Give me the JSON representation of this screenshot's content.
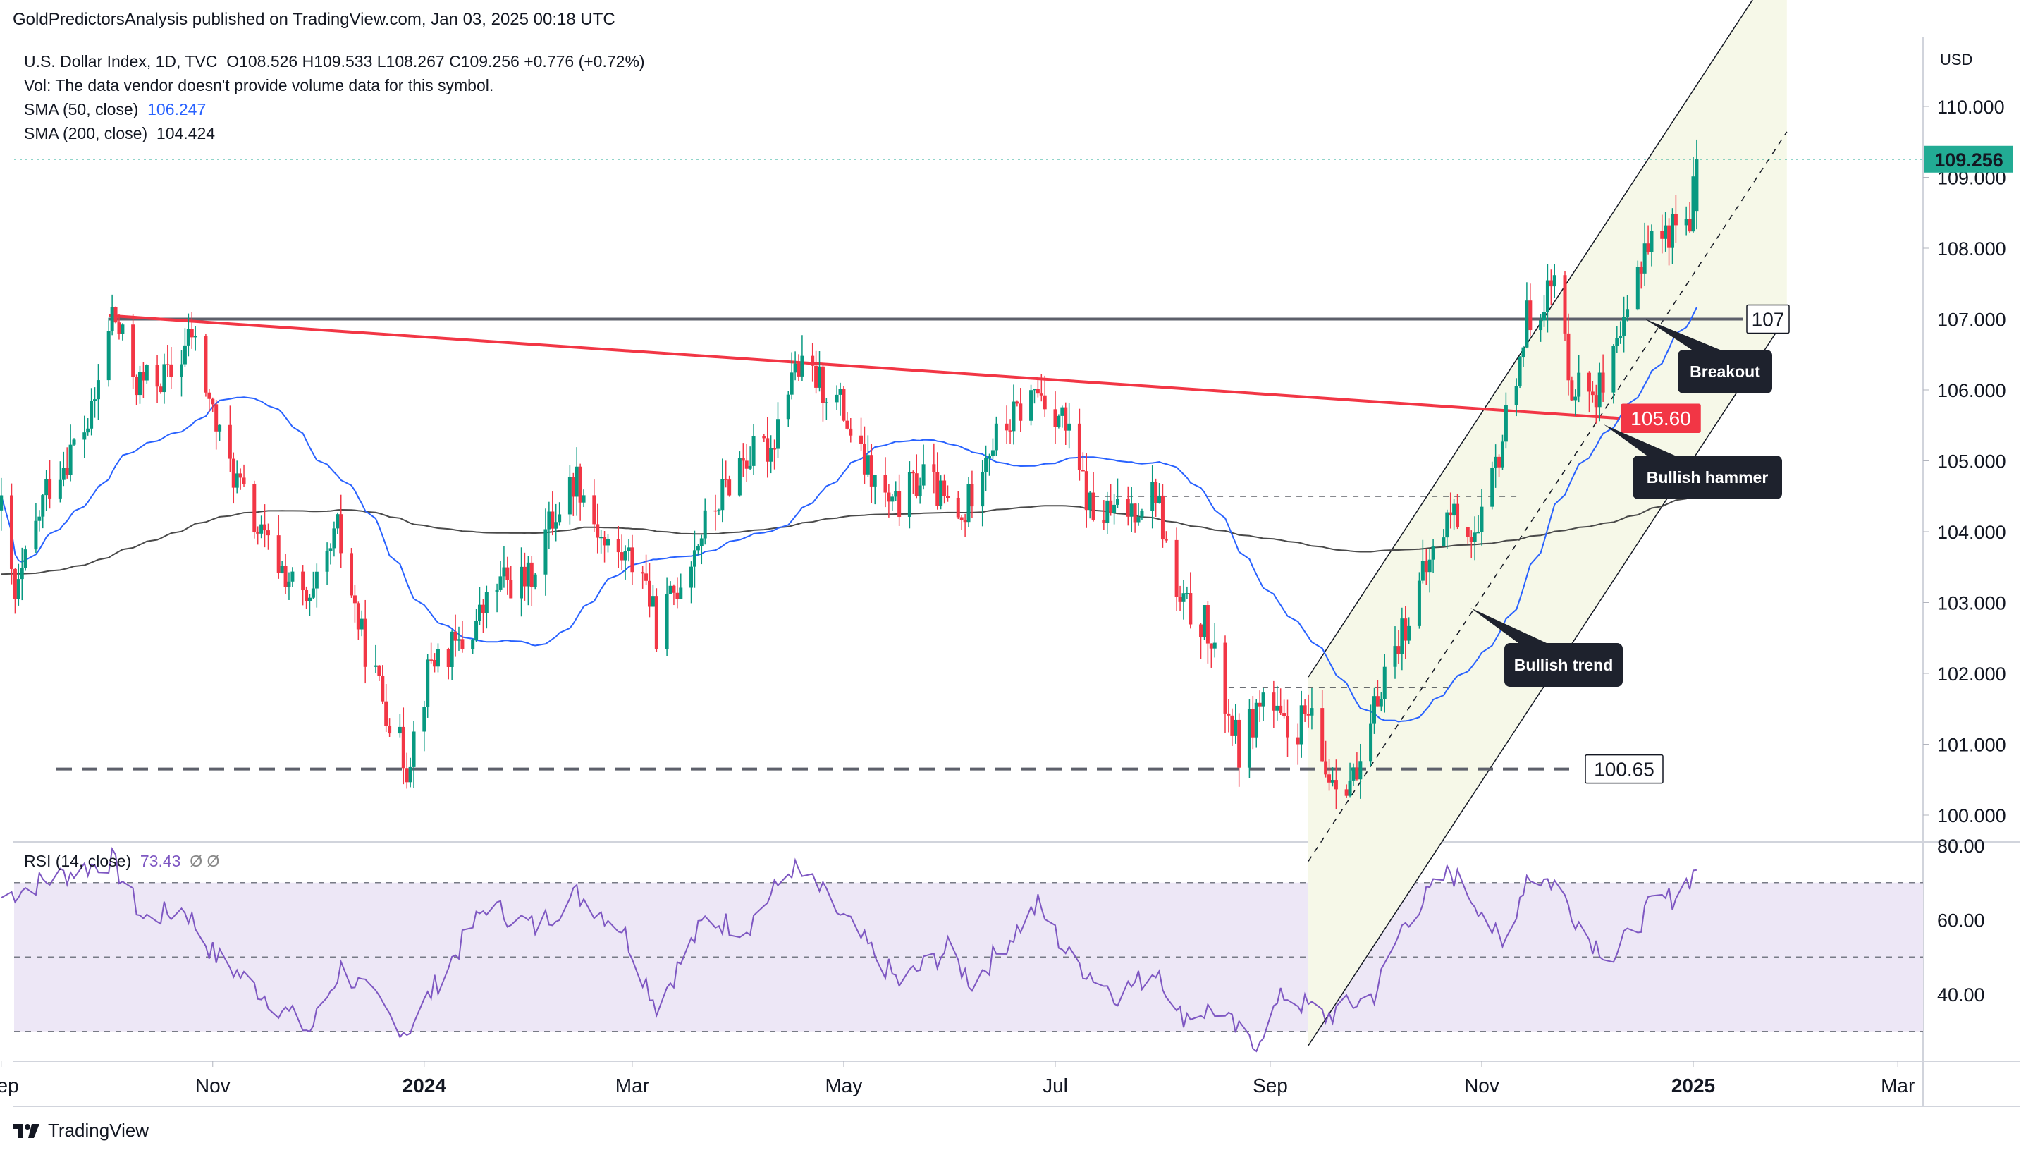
{
  "header": {
    "publisher": "GoldPredictorsAnalysis published on TradingView.com, Jan 03, 2025 00:18 UTC"
  },
  "legend": {
    "symbol_line": "U.S. Dollar Index, 1D, TVC",
    "ohlc": "O108.526  H109.533  L108.267  C109.256  +0.776 (+0.72%)",
    "vol_note": "Vol: The data vendor doesn't provide volume data for this symbol.",
    "sma50_label": "SMA (50, close)",
    "sma50_value": "106.247",
    "sma200_label": "SMA (200, close)",
    "sma200_value": "104.424"
  },
  "rsi_legend": {
    "label": "RSI (14, close)",
    "value": "73.43",
    "extra": "Ø  Ø"
  },
  "price_axis": {
    "currency": "USD",
    "ticks": [
      "110.000",
      "109.000",
      "108.000",
      "107.000",
      "106.000",
      "105.000",
      "104.000",
      "103.000",
      "102.000",
      "101.000",
      "100.000"
    ],
    "current_price": "109.256"
  },
  "rsi_axis": {
    "ticks": [
      "80.00",
      "60.00",
      "40.00"
    ]
  },
  "time_axis": {
    "ticks": [
      "Sep",
      "Nov",
      "2024",
      "Mar",
      "May",
      "Jul",
      "Sep",
      "Nov",
      "2025",
      "Mar"
    ]
  },
  "annotations": {
    "resistance_label": "107",
    "support_label": "100.65",
    "trendline_label": "105.60",
    "breakout": "Breakout",
    "bullish_hammer": "Bullish hammer",
    "bullish_trend": "Bullish trend"
  },
  "footer": {
    "brand": "TradingView"
  },
  "colors": {
    "up": "#089981",
    "down": "#f23645",
    "sma50": "#2962ff",
    "sma200": "#4a4a4a",
    "trendline": "#f23645",
    "channel_fill": "#f6f8e8",
    "rsi_line": "#7e57c2",
    "rsi_band": "#ede7f6",
    "current_price_bg": "#22ab94",
    "trendline_label_bg": "#f23645"
  },
  "chart_data": {
    "type": "candlestick",
    "title": "U.S. Dollar Index, 1D, TVC",
    "price_range": [
      99.6,
      110.9
    ],
    "rsi_range": [
      25,
      82
    ],
    "rsi_levels": [
      70,
      50,
      30
    ],
    "x_range": [
      "2023-08-31",
      "2025-03-25"
    ],
    "last_bar": {
      "date": "2025-01-02",
      "open": 108.526,
      "high": 109.533,
      "low": 108.267,
      "close": 109.256
    },
    "sma50_last": 106.247,
    "sma200_last": 104.424,
    "rsi_last": 73.43,
    "levels": {
      "resistance": 107,
      "support": 100.65,
      "trendline_value_at_last": 105.6
    },
    "price_path": [
      [
        "2023-09-01",
        104.3
      ],
      [
        "2023-09-05",
        103.0
      ],
      [
        "2023-09-14",
        104.6
      ],
      [
        "2023-09-27",
        105.6
      ],
      [
        "2023-10-03",
        107.1
      ],
      [
        "2023-10-10",
        106.1
      ],
      [
        "2023-10-20",
        106.2
      ],
      [
        "2023-10-26",
        106.8
      ],
      [
        "2023-11-03",
        105.3
      ],
      [
        "2023-11-14",
        104.0
      ],
      [
        "2023-11-22",
        103.4
      ],
      [
        "2023-11-29",
        102.9
      ],
      [
        "2023-12-07",
        104.0
      ],
      [
        "2023-12-14",
        102.5
      ],
      [
        "2023-12-27",
        100.7
      ],
      [
        "2024-01-03",
        102.2
      ],
      [
        "2024-01-12",
        102.4
      ],
      [
        "2024-01-23",
        103.3
      ],
      [
        "2024-01-31",
        103.3
      ],
      [
        "2024-02-06",
        104.1
      ],
      [
        "2024-02-14",
        104.8
      ],
      [
        "2024-02-22",
        103.8
      ],
      [
        "2024-03-04",
        103.5
      ],
      [
        "2024-03-08",
        102.6
      ],
      [
        "2024-03-20",
        103.9
      ],
      [
        "2024-04-01",
        105.0
      ],
      [
        "2024-04-10",
        105.2
      ],
      [
        "2024-04-16",
        106.3
      ],
      [
        "2024-04-22",
        106.2
      ],
      [
        "2024-04-30",
        105.8
      ],
      [
        "2024-05-06",
        105.0
      ],
      [
        "2024-05-15",
        104.3
      ],
      [
        "2024-05-24",
        104.8
      ],
      [
        "2024-06-04",
        104.1
      ],
      [
        "2024-06-10",
        105.1
      ],
      [
        "2024-06-26",
        106.0
      ],
      [
        "2024-07-03",
        105.6
      ],
      [
        "2024-07-12",
        104.2
      ],
      [
        "2024-07-22",
        104.3
      ],
      [
        "2024-07-30",
        104.6
      ],
      [
        "2024-08-05",
        103.0
      ],
      [
        "2024-08-13",
        102.7
      ],
      [
        "2024-08-23",
        100.9
      ],
      [
        "2024-08-30",
        101.7
      ],
      [
        "2024-09-06",
        101.1
      ],
      [
        "2024-09-12",
        101.4
      ],
      [
        "2024-09-17",
        100.6
      ],
      [
        "2024-09-27",
        100.5
      ],
      [
        "2024-10-03",
        101.9
      ],
      [
        "2024-10-14",
        103.2
      ],
      [
        "2024-10-23",
        104.3
      ],
      [
        "2024-10-31",
        103.9
      ],
      [
        "2024-11-06",
        105.1
      ],
      [
        "2024-11-14",
        107.0
      ],
      [
        "2024-11-22",
        107.5
      ],
      [
        "2024-11-27",
        106.1
      ],
      [
        "2024-12-06",
        106.0
      ],
      [
        "2024-12-11",
        106.6
      ],
      [
        "2024-12-18",
        108.1
      ],
      [
        "2024-12-24",
        108.2
      ],
      [
        "2024-12-31",
        108.5
      ],
      [
        "2025-01-02",
        109.26
      ]
    ],
    "rsi_path": [
      [
        "2023-09-01",
        66
      ],
      [
        "2023-09-12",
        70
      ],
      [
        "2023-09-25",
        74
      ],
      [
        "2023-10-03",
        76
      ],
      [
        "2023-10-12",
        60
      ],
      [
        "2023-10-24",
        63
      ],
      [
        "2023-11-01",
        51
      ],
      [
        "2023-11-13",
        42
      ],
      [
        "2023-11-29",
        30
      ],
      [
        "2023-12-08",
        47
      ],
      [
        "2023-12-27",
        30
      ],
      [
        "2024-01-08",
        48
      ],
      [
        "2024-01-19",
        64
      ],
      [
        "2024-02-02",
        58
      ],
      [
        "2024-02-14",
        67
      ],
      [
        "2024-02-27",
        58
      ],
      [
        "2024-03-08",
        37
      ],
      [
        "2024-03-22",
        60
      ],
      [
        "2024-04-03",
        58
      ],
      [
        "2024-04-16",
        74
      ],
      [
        "2024-04-24",
        68
      ],
      [
        "2024-05-03",
        58
      ],
      [
        "2024-05-17",
        43
      ],
      [
        "2024-05-31",
        52
      ],
      [
        "2024-06-07",
        43
      ],
      [
        "2024-06-26",
        64
      ],
      [
        "2024-07-05",
        50
      ],
      [
        "2024-07-19",
        40
      ],
      [
        "2024-07-31",
        47
      ],
      [
        "2024-08-05",
        34
      ],
      [
        "2024-08-16",
        36
      ],
      [
        "2024-08-27",
        26
      ],
      [
        "2024-09-05",
        40
      ],
      [
        "2024-09-17",
        34
      ],
      [
        "2024-10-01",
        40
      ],
      [
        "2024-10-10",
        60
      ],
      [
        "2024-10-23",
        73
      ],
      [
        "2024-11-01",
        63
      ],
      [
        "2024-11-07",
        52
      ],
      [
        "2024-11-14",
        72
      ],
      [
        "2024-11-22",
        70
      ],
      [
        "2024-12-02",
        55
      ],
      [
        "2024-12-09",
        50
      ],
      [
        "2024-12-20",
        64
      ],
      [
        "2024-12-26",
        66
      ],
      [
        "2025-01-02",
        73.43
      ]
    ]
  }
}
